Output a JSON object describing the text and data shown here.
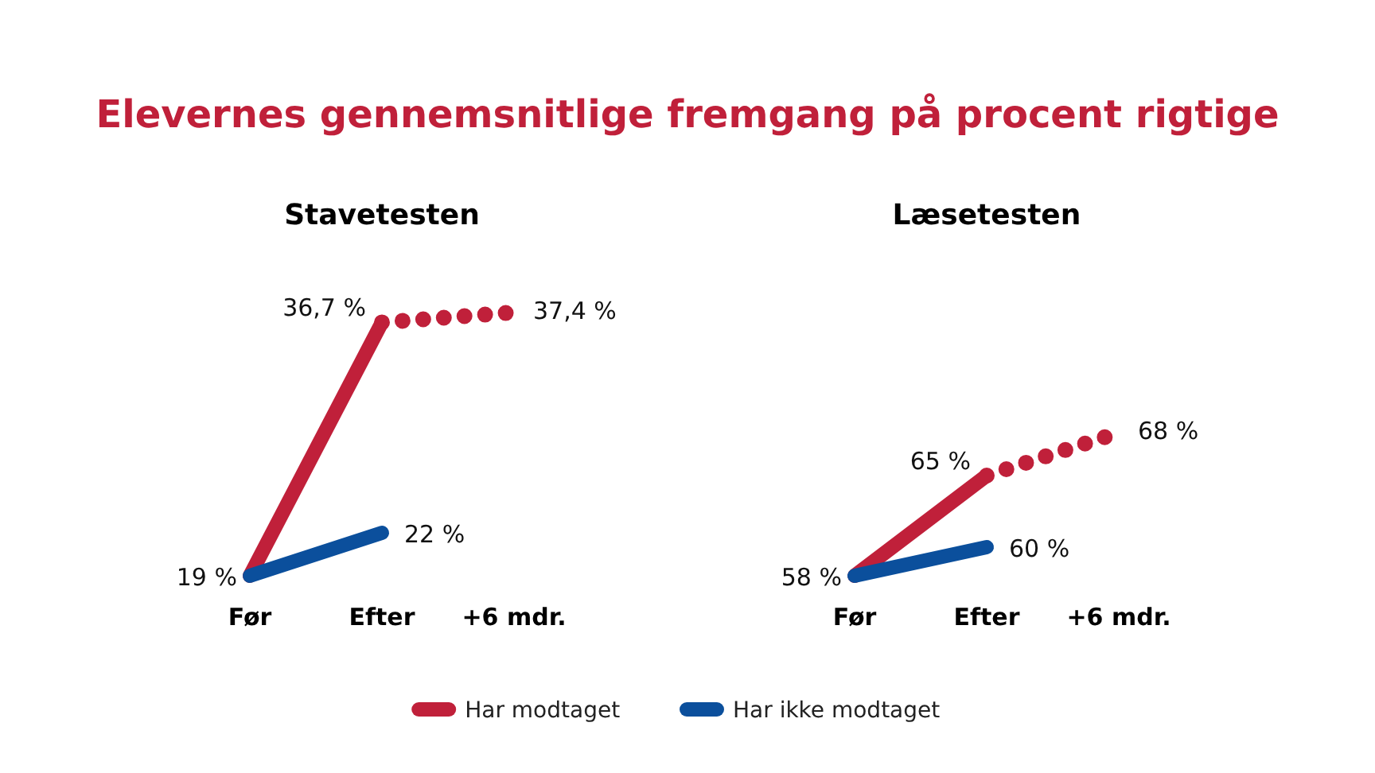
{
  "chart_data": [
    {
      "type": "other",
      "title": "Elevernes gennemsnitlige fremgang på procent rigtige"
    },
    {
      "type": "line",
      "title": "Stavetesten",
      "categories": [
        "Før",
        "Efter",
        "+6 mdr."
      ],
      "tick_labels": "x",
      "legend": false,
      "series": [
        {
          "color": "#c0203a",
          "values": [
            19,
            36.7,
            null
          ],
          "value_labels": [
            "19 %",
            "36,7 %",
            null
          ],
          "line_style": "solid"
        },
        {
          "color": "#c0203a",
          "values": [
            null,
            36.7,
            37.4
          ],
          "value_labels": [
            null,
            null,
            "37,4 %"
          ],
          "line_style": "dotted"
        },
        {
          "color": "#0b4f9c",
          "values": [
            19,
            22,
            null
          ],
          "value_labels": [
            null,
            "22 %",
            null
          ],
          "line_style": "solid"
        }
      ]
    },
    {
      "type": "line",
      "title": "Læsetesten",
      "categories": [
        "Før",
        "Efter",
        "+6 mdr."
      ],
      "tick_labels": "x",
      "legend": "bottom",
      "series": [
        {
          "name": "Har modtaget",
          "color": "#c0203a",
          "values": [
            58,
            65,
            null
          ],
          "value_labels": [
            "58 %",
            "65 %",
            null
          ],
          "line_style": "solid"
        },
        {
          "color": "#c0203a",
          "values": [
            null,
            65,
            68
          ],
          "value_labels": [
            null,
            null,
            "68 %"
          ],
          "line_style": "dotted"
        },
        {
          "name": "Har ikke modtaget",
          "color": "#0b4f9c",
          "values": [
            58,
            60,
            null
          ],
          "value_labels": [
            null,
            "60 %",
            null
          ],
          "line_style": "solid"
        }
      ]
    }
  ]
}
